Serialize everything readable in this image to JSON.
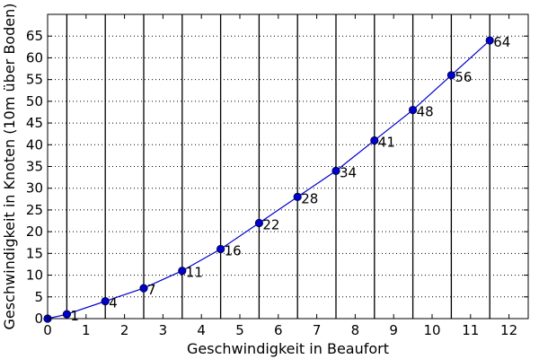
{
  "chart_data": {
    "type": "line",
    "xlabel": "Geschwindigkeit in Beaufort",
    "ylabel": "Geschwindigkeit in Knoten (10m über Boden)",
    "xlim": [
      0,
      12.5
    ],
    "ylim": [
      0,
      70
    ],
    "xticks": [
      0,
      1,
      2,
      3,
      4,
      5,
      6,
      7,
      8,
      9,
      10,
      11,
      12
    ],
    "yticks": [
      0,
      5,
      10,
      15,
      20,
      25,
      30,
      35,
      40,
      45,
      50,
      55,
      60,
      65
    ],
    "horizontal_grid": "dotted",
    "vertical_boundaries": [
      0.5,
      1.5,
      2.5,
      3.5,
      4.5,
      5.5,
      6.5,
      7.5,
      8.5,
      9.5,
      10.5,
      11.5
    ],
    "series": [
      {
        "color": "#0000cc",
        "x": [
          0,
          0.5,
          1.5,
          2.5,
          3.5,
          4.5,
          5.5,
          6.5,
          7.5,
          8.5,
          9.5,
          10.5,
          11.5
        ],
        "y": [
          0,
          1,
          4,
          7,
          11,
          16,
          22,
          28,
          34,
          41,
          48,
          56,
          64
        ]
      }
    ],
    "point_labels": [
      "1",
      "4",
      "7",
      "11",
      "16",
      "22",
      "28",
      "34",
      "41",
      "48",
      "56",
      "64"
    ]
  }
}
